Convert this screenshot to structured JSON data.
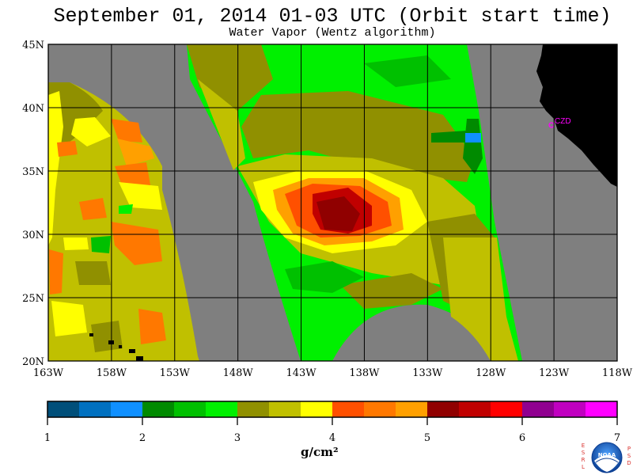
{
  "title": "September 01, 2014  01-03 UTC  (Orbit start time)",
  "subtitle": "Water Vapor (Wentz algorithm)",
  "map": {
    "lat_ticks": [
      "45N",
      "40N",
      "35N",
      "30N",
      "25N",
      "20N"
    ],
    "lon_ticks": [
      "163W",
      "158W",
      "153W",
      "148W",
      "143W",
      "138W",
      "133W",
      "128W",
      "123W",
      "118W"
    ],
    "lon_range": [
      -163,
      -118
    ],
    "lat_range": [
      20,
      45
    ],
    "station_label": "CZD",
    "colors": {
      "no_data": "#7f7f7f",
      "land": "#000000",
      "grid": "#000000",
      "station": "#ff00ff"
    }
  },
  "colorbar": {
    "ticks": [
      "1",
      "2",
      "3",
      "4",
      "5",
      "6",
      "7"
    ],
    "unit": "g/cm²",
    "colors": [
      "#004f7a",
      "#0070c0",
      "#1090ff",
      "#008a00",
      "#00c000",
      "#00f000",
      "#909000",
      "#c0c000",
      "#ffff00",
      "#ff5000",
      "#ff7800",
      "#ffa000",
      "#900000",
      "#c00000",
      "#ff0000",
      "#900090",
      "#c000c0",
      "#ff00ff"
    ]
  },
  "logo": {
    "left_letters": [
      "E",
      "S",
      "R",
      "L"
    ],
    "right_letters": [
      "P",
      "S",
      "D"
    ],
    "name": "NOAA"
  }
}
